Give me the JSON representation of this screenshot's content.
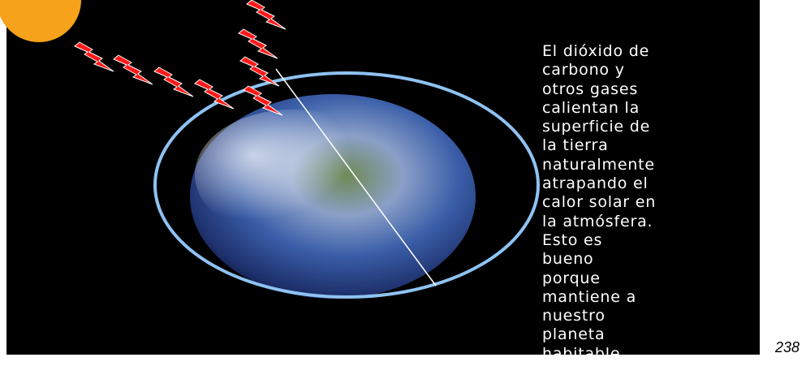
{
  "slide": {
    "text_lines": [
      "El dióxido de",
      "carbono y",
      "otros gases",
      "calientan la",
      "superficie de",
      "la tierra",
      "naturalmente",
      "atrapando el",
      "calor solar en",
      "la atmósfera.",
      "Esto es",
      "bueno",
      "porque",
      "mantiene a",
      "nuestro",
      "planeta",
      "habitable."
    ],
    "page_number": "238"
  }
}
